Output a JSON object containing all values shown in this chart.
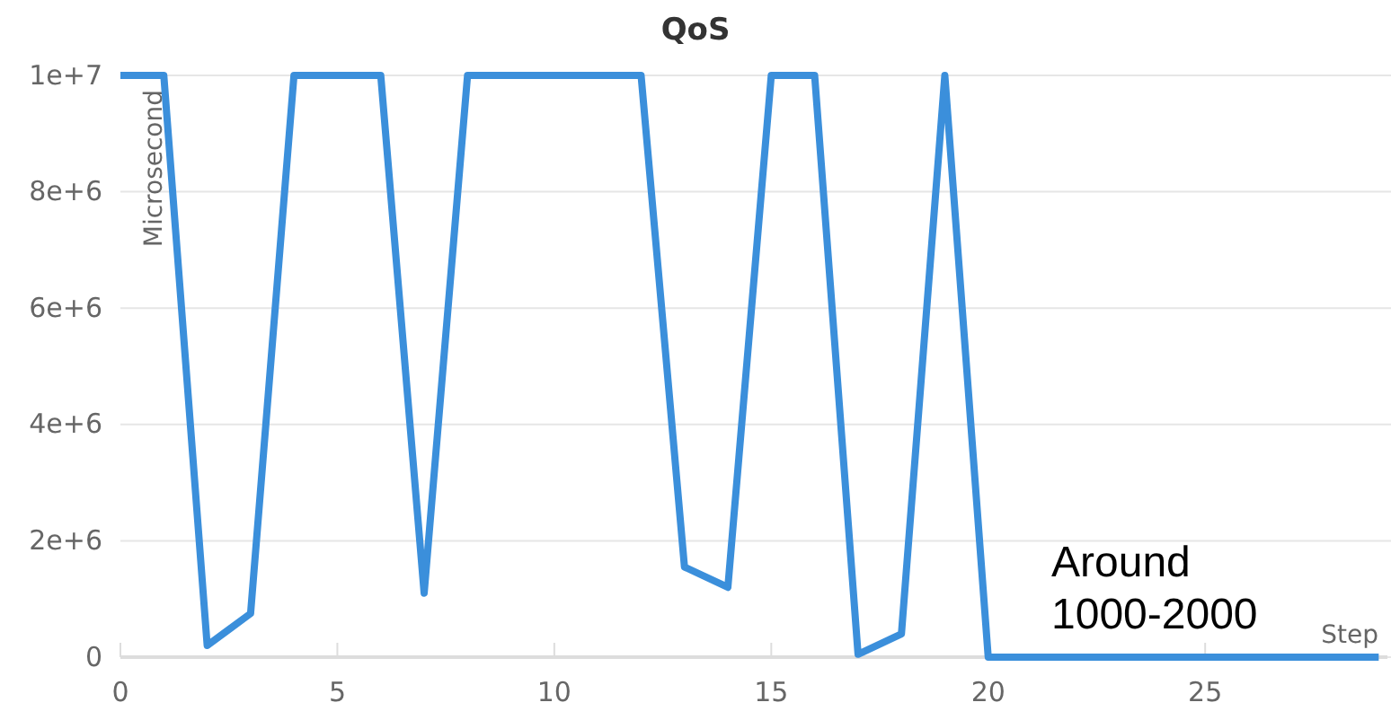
{
  "chart_data": {
    "type": "line",
    "title": "QoS",
    "xlabel": "Step",
    "ylabel": "Microsecond",
    "x": [
      0,
      1,
      2,
      3,
      4,
      5,
      6,
      7,
      8,
      9,
      10,
      11,
      12,
      13,
      14,
      15,
      16,
      17,
      18,
      19,
      20,
      21,
      22,
      23,
      24,
      25,
      26,
      27,
      28,
      29
    ],
    "series": [
      {
        "color": "#3b8fdb",
        "values": [
          10000000,
          10000000,
          200000,
          750000,
          10000000,
          10000000,
          10000000,
          1100000,
          10000000,
          10000000,
          10000000,
          10000000,
          10000000,
          1550000,
          1200000,
          10000000,
          10000000,
          50000,
          400000,
          10000000,
          1500,
          1500,
          1500,
          1500,
          1500,
          1500,
          1500,
          1500,
          1500,
          1500
        ]
      }
    ],
    "xlim": [
      0,
      29.2
    ],
    "xticks": [
      0,
      5,
      10,
      15,
      20,
      25
    ],
    "ylim": [
      0,
      10000000
    ],
    "yticks": [
      {
        "value": 0,
        "label": "0"
      },
      {
        "value": 2000000,
        "label": "2e+6"
      },
      {
        "value": 4000000,
        "label": "4e+6"
      },
      {
        "value": 6000000,
        "label": "6e+6"
      },
      {
        "value": 8000000,
        "label": "8e+6"
      },
      {
        "value": 10000000,
        "label": "1e+7"
      }
    ],
    "grid": "y",
    "marker": "none",
    "line_style": "solid",
    "annotations": [
      "Around\n1000-2000"
    ]
  }
}
